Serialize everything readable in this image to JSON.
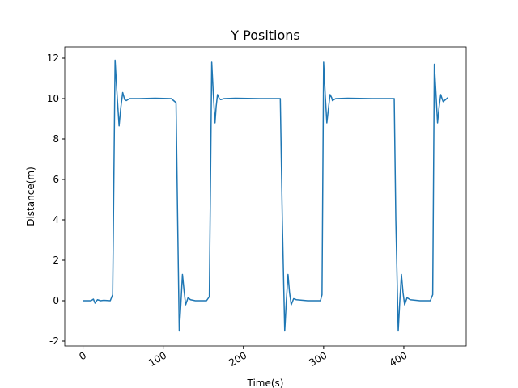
{
  "chart_data": {
    "type": "line",
    "title": "Y Positions",
    "x_label": "Time(s)",
    "y_label": "Distance(m)",
    "x": [
      0,
      10,
      13,
      15,
      18,
      22,
      26,
      34,
      37,
      40,
      42,
      45,
      47,
      49.5,
      52,
      54,
      58,
      70,
      90,
      110,
      116,
      118,
      120,
      122,
      124,
      126,
      128,
      131,
      134,
      140,
      154,
      157.5,
      160.5,
      162.5,
      164.6,
      166,
      167.7,
      170,
      171.7,
      176,
      190,
      220,
      246,
      248.5,
      251.5,
      253.5,
      255.6,
      257.5,
      259.6,
      262.6,
      266,
      280,
      296,
      298,
      300,
      302,
      304,
      306,
      308,
      310,
      311,
      315,
      330,
      360,
      388,
      390,
      393,
      395,
      397,
      399,
      401,
      404,
      408,
      420,
      433,
      436,
      438,
      440,
      442,
      444,
      446,
      448,
      449,
      452,
      455
    ],
    "series": [
      {
        "color": "#1f77b4",
        "values": [
          0,
          0,
          0.08,
          -0.12,
          0.05,
          0,
          0.02,
          0,
          0.3,
          11.9,
          10.5,
          8.65,
          9.5,
          10.3,
          9.95,
          9.9,
          10,
          10,
          10.02,
          10,
          9.8,
          4,
          -1.5,
          -0.2,
          1.3,
          0.5,
          -0.2,
          0.15,
          0.05,
          0,
          0,
          0.2,
          11.8,
          10.2,
          8.8,
          9.6,
          10.2,
          10,
          9.95,
          10,
          10.02,
          10,
          10,
          4,
          -1.5,
          0,
          1.3,
          0.4,
          -0.2,
          0.1,
          0.05,
          0,
          0,
          0.3,
          11.8,
          10.2,
          8.8,
          9.5,
          10.2,
          10.05,
          9.9,
          10,
          10.02,
          10,
          10,
          4,
          -1.5,
          0,
          1.3,
          0.4,
          -0.2,
          0.15,
          0.05,
          0,
          0,
          0.3,
          11.7,
          10.3,
          8.8,
          9.6,
          10.2,
          9.95,
          9.85,
          9.95,
          10.05
        ]
      }
    ],
    "xlim": [
      -22.75,
      477.75
    ],
    "ylim": [
      -2.24,
      12.56
    ],
    "xticks": [
      0,
      100,
      200,
      300,
      400
    ],
    "yticks": [
      -2,
      0,
      2,
      4,
      6,
      8,
      10,
      12
    ]
  }
}
